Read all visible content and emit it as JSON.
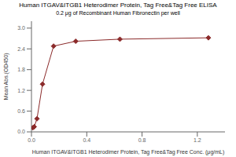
{
  "chart_data": {
    "type": "line",
    "title": "Human ITGAV&ITGB1 Heterodimer Protein, Tag Free&Tag Free ELISA",
    "subtitle": "0.2 μg of Recombinant Human Fibronectin per well",
    "xlabel": "Human ITGAV&ITGB1 Heterodimer Protein, Tag Free&Tag Free Conc. (μg/mL)",
    "ylabel": "Mean Abs.(OD450)",
    "x": [
      0.01,
      0.02,
      0.04,
      0.08,
      0.16,
      0.32,
      0.64,
      1.28
    ],
    "values": [
      0.12,
      0.15,
      0.38,
      1.38,
      2.48,
      2.62,
      2.68,
      2.72
    ],
    "color": "#8B2A2A",
    "marker": "diamond",
    "xlim": [
      0,
      1.4
    ],
    "ylim": [
      0,
      3.2
    ],
    "xticks": [
      {
        "value": 0,
        "label": "0.0"
      },
      0.4,
      0.8,
      1.2
    ],
    "yticks": [
      {
        "value": 0,
        "label": "0.0"
      },
      0.6,
      1.2,
      1.8,
      2.4,
      {
        "value": 3,
        "label": "3.0"
      }
    ]
  }
}
